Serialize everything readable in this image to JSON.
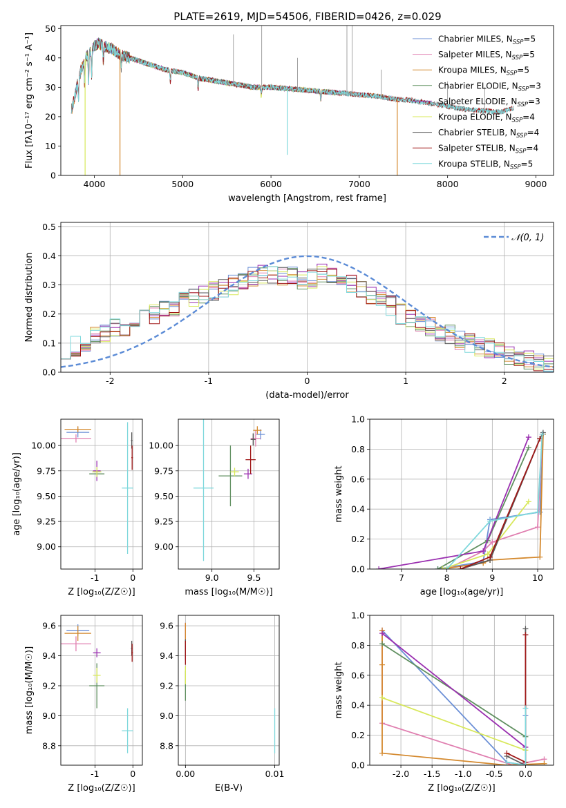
{
  "figure_title": "PLATE=2619, MJD=54506, FIBERID=0426, z=0.029",
  "palette": {
    "Chabrier MILES": "#6b8fd6",
    "Salpeter MILES": "#e07fb0",
    "Kroupa MILES": "#d4892e",
    "Chabrier ELODIE": "#5f8f5f",
    "Salpeter ELODIE": "#9a2fb0",
    "Kroupa ELODIE": "#d8e85a",
    "Chabrier STELIB": "#5a5a5a",
    "Salpeter STELIB": "#a01818",
    "Kroupa STELIB": "#7fd8dc"
  },
  "chart_data": [
    {
      "id": "spectrum",
      "type": "line",
      "xlabel": "wavelength [Angstrom, rest frame]",
      "ylabel": "Flux [fλ10⁻¹⁷ erg cm⁻² s⁻¹ A⁻¹]",
      "xlim": [
        3620,
        9200
      ],
      "ylim": [
        0,
        51
      ],
      "xticks": [
        4000,
        5000,
        6000,
        7000,
        8000,
        9000
      ],
      "yticks": [
        0,
        10,
        20,
        30,
        40,
        50
      ],
      "grid": false,
      "legend_position": "top-right",
      "legend": [
        {
          "label": "Chabrier MILES",
          "nssp": "5"
        },
        {
          "label": "Salpeter MILES",
          "nssp": "5"
        },
        {
          "label": "Kroupa MILES",
          "nssp": "5"
        },
        {
          "label": "Chabrier ELODIE",
          "nssp": "3"
        },
        {
          "label": "Salpeter ELODIE",
          "nssp": "3"
        },
        {
          "label": "Kroupa ELODIE",
          "nssp": "4"
        },
        {
          "label": "Chabrier STELIB",
          "nssp": "4"
        },
        {
          "label": "Salpeter STELIB",
          "nssp": "4"
        },
        {
          "label": "Kroupa STELIB",
          "nssp": "5"
        }
      ],
      "continuum": {
        "x": [
          3750,
          3800,
          3850,
          3900,
          3950,
          4000,
          4050,
          4100,
          4200,
          4300,
          4400,
          4600,
          4800,
          5000,
          5200,
          5400,
          5600,
          5800,
          6000,
          6200,
          6400,
          6600,
          6800,
          7000,
          7200,
          7400,
          7600,
          7800,
          8000,
          8200,
          8400,
          8600,
          8800
        ],
        "y": [
          23,
          30,
          36,
          40,
          42,
          44,
          45,
          44,
          43,
          41,
          40,
          38,
          36,
          35,
          33,
          32,
          31,
          30,
          30,
          29.5,
          29,
          28.5,
          28,
          27.5,
          27,
          26,
          25.5,
          24.5,
          23.5,
          22.5,
          22,
          21.5,
          23.5
        ]
      },
      "ranges": {
        "Chabrier MILES": [
          3740,
          7400
        ],
        "Salpeter MILES": [
          3740,
          7400
        ],
        "Kroupa MILES": [
          3740,
          7430
        ],
        "Chabrier ELODIE": [
          3900,
          6800
        ],
        "Salpeter ELODIE": [
          3900,
          6800
        ],
        "Kroupa ELODIE": [
          3900,
          6800
        ],
        "Chabrier STELIB": [
          3740,
          8750
        ],
        "Salpeter STELIB": [
          3740,
          8750
        ],
        "Kroupa STELIB": [
          3740,
          8750
        ]
      },
      "dips": [
        {
          "series": "Kroupa MILES",
          "x": 4290,
          "y": 0
        },
        {
          "series": "Kroupa MILES",
          "x": 7430,
          "y": 0
        },
        {
          "series": "Kroupa ELODIE",
          "x": 3895,
          "y": 0
        },
        {
          "series": "Kroupa STELIB",
          "x": 6185,
          "y": 7
        }
      ]
    },
    {
      "id": "residuals",
      "type": "line",
      "xlabel": "(data-model)/error",
      "ylabel": "Normed distribution",
      "xlim": [
        -2.5,
        2.5
      ],
      "ylim": [
        0,
        0.515
      ],
      "xticks": [
        -2,
        -1,
        0,
        1,
        2
      ],
      "yticks": [
        0.0,
        0.1,
        0.2,
        0.3,
        0.4,
        0.5
      ],
      "grid": true,
      "legend_position": "top-right",
      "legend": [
        {
          "label": "𝒩(0, 1)",
          "style": "dashed"
        }
      ],
      "bin_width": 0.1,
      "bins_start": -2.5,
      "base_profile": [
        0.08,
        0.09,
        0.1,
        0.12,
        0.13,
        0.15,
        0.16,
        0.17,
        0.19,
        0.2,
        0.21,
        0.22,
        0.24,
        0.26,
        0.27,
        0.28,
        0.29,
        0.3,
        0.31,
        0.33,
        0.34,
        0.34,
        0.33,
        0.33,
        0.32,
        0.32,
        0.34,
        0.34,
        0.32,
        0.3,
        0.29,
        0.27,
        0.25,
        0.23,
        0.2,
        0.19,
        0.17,
        0.16,
        0.14,
        0.13,
        0.11,
        0.1,
        0.09,
        0.08,
        0.07,
        0.06,
        0.05,
        0.04,
        0.035,
        0.03
      ]
    },
    {
      "id": "age-vs-Z",
      "type": "scatter",
      "xlabel": "Z [log₁₀(Z/Z☉)]",
      "ylabel": "age  [log₁₀(age/yr)]",
      "xlim": [
        -1.9,
        0.25
      ],
      "ylim": [
        8.78,
        10.26
      ],
      "xticks": [
        -1,
        0
      ],
      "yticks": [
        9.0,
        9.25,
        9.5,
        9.75,
        10.0
      ],
      "grid": true,
      "points": [
        {
          "series": "Chabrier MILES",
          "x": -1.45,
          "y": 10.13,
          "xerr": 0.3,
          "yerr": 0.05
        },
        {
          "series": "Salpeter MILES",
          "x": -1.5,
          "y": 10.07,
          "xerr": 0.4,
          "yerr": 0.04
        },
        {
          "series": "Kroupa MILES",
          "x": -1.45,
          "y": 10.16,
          "xerr": 0.35,
          "yerr": 0.03
        },
        {
          "series": "Chabrier ELODIE",
          "x": -0.95,
          "y": 9.72,
          "xerr": 0.2,
          "yerr": 0.03
        },
        {
          "series": "Salpeter ELODIE",
          "x": -0.95,
          "y": 9.75,
          "xerr": 0.1,
          "yerr": 0.1
        },
        {
          "series": "Kroupa ELODIE",
          "x": -0.95,
          "y": 9.74,
          "xerr": 0.12,
          "yerr": 0.05
        },
        {
          "series": "Chabrier STELIB",
          "x": -0.03,
          "y": 10.05,
          "xerr": 0.02,
          "yerr": 0.08
        },
        {
          "series": "Salpeter STELIB",
          "x": -0.02,
          "y": 9.88,
          "xerr": 0.02,
          "yerr": 0.12
        },
        {
          "series": "Kroupa STELIB",
          "x": -0.14,
          "y": 9.58,
          "xerr": 0.15,
          "yerr": 0.65
        }
      ]
    },
    {
      "id": "age-vs-mass",
      "type": "scatter",
      "xlabel": "mass [log₁₀(M/M☉)]",
      "ylabel": "",
      "xlim": [
        8.6,
        9.8
      ],
      "ylim": [
        8.78,
        10.26
      ],
      "xticks": [
        9.0,
        9.5
      ],
      "yticks": [
        9.0,
        9.25,
        9.5,
        9.75,
        10.0
      ],
      "grid": true,
      "points": [
        {
          "series": "Chabrier MILES",
          "x": 9.58,
          "y": 10.11,
          "xerr": 0.05,
          "yerr": 0.05
        },
        {
          "series": "Salpeter MILES",
          "x": 9.52,
          "y": 10.07,
          "xerr": 0.06,
          "yerr": 0.08
        },
        {
          "series": "Kroupa MILES",
          "x": 9.54,
          "y": 10.15,
          "xerr": 0.05,
          "yerr": 0.04
        },
        {
          "series": "Chabrier ELODIE",
          "x": 9.22,
          "y": 9.7,
          "xerr": 0.14,
          "yerr": 0.3
        },
        {
          "series": "Salpeter ELODIE",
          "x": 9.43,
          "y": 9.72,
          "xerr": 0.05,
          "yerr": 0.05
        },
        {
          "series": "Kroupa ELODIE",
          "x": 9.27,
          "y": 9.74,
          "xerr": 0.05,
          "yerr": 0.04
        },
        {
          "series": "Chabrier STELIB",
          "x": 9.49,
          "y": 10.06,
          "xerr": 0.03,
          "yerr": 0.06
        },
        {
          "series": "Salpeter STELIB",
          "x": 9.46,
          "y": 9.86,
          "xerr": 0.06,
          "yerr": 0.14
        },
        {
          "series": "Kroupa STELIB",
          "x": 8.9,
          "y": 9.58,
          "xerr": 0.12,
          "yerr": 0.72
        }
      ]
    },
    {
      "id": "weight-vs-age",
      "type": "line",
      "xlabel": "age  [log₁₀(age/yr)]",
      "ylabel": "mass weight",
      "xlim": [
        6.3,
        10.35
      ],
      "ylim": [
        0,
        1.0
      ],
      "xticks": [
        7,
        8,
        9,
        10
      ],
      "yticks": [
        0.0,
        0.2,
        0.4,
        0.6,
        0.8,
        1.0
      ],
      "grid": true,
      "series": [
        {
          "name": "Chabrier MILES",
          "x": [
            7.8,
            8.8,
            8.95,
            10.05,
            10.12
          ],
          "y": [
            0.0,
            0.05,
            0.33,
            0.38,
            0.9
          ]
        },
        {
          "name": "Salpeter MILES",
          "x": [
            8.0,
            8.8,
            9.0,
            10.0,
            10.1
          ],
          "y": [
            0.0,
            0.12,
            0.18,
            0.28,
            0.9
          ]
        },
        {
          "name": "Kroupa MILES",
          "x": [
            7.9,
            8.8,
            8.95,
            10.05,
            10.12
          ],
          "y": [
            0.0,
            0.04,
            0.06,
            0.08,
            0.9
          ]
        },
        {
          "name": "Chabrier ELODIE",
          "x": [
            7.8,
            8.9,
            9.8
          ],
          "y": [
            0.0,
            0.19,
            0.81
          ]
        },
        {
          "name": "Salpeter ELODIE",
          "x": [
            6.5,
            8.8,
            9.8
          ],
          "y": [
            0.0,
            0.12,
            0.88
          ]
        },
        {
          "name": "Kroupa ELODIE",
          "x": [
            7.9,
            8.9,
            9.8
          ],
          "y": [
            0.0,
            0.1,
            0.45
          ]
        },
        {
          "name": "Chabrier STELIB",
          "x": [
            8.3,
            8.95,
            10.05,
            10.12
          ],
          "y": [
            0.0,
            0.06,
            0.87,
            0.91
          ]
        },
        {
          "name": "Salpeter STELIB",
          "x": [
            8.3,
            8.95,
            10.05
          ],
          "y": [
            0.0,
            0.08,
            0.87
          ]
        },
        {
          "name": "Kroupa STELIB",
          "x": [
            8.0,
            8.95,
            10.0,
            10.1
          ],
          "y": [
            0.0,
            0.32,
            0.38,
            0.9
          ]
        }
      ]
    },
    {
      "id": "mass-vs-Z",
      "type": "scatter",
      "xlabel": "Z [log₁₀(Z/Z☉)]",
      "ylabel": "mass [log₁₀(M/M☉)]",
      "xlim": [
        -1.9,
        0.25
      ],
      "ylim": [
        8.67,
        9.67
      ],
      "xticks": [
        -1,
        0
      ],
      "yticks": [
        8.8,
        9.0,
        9.2,
        9.4,
        9.6
      ],
      "grid": true,
      "points": [
        {
          "series": "Chabrier MILES",
          "x": -1.45,
          "y": 9.57,
          "xerr": 0.3,
          "yerr": 0.04
        },
        {
          "series": "Salpeter MILES",
          "x": -1.5,
          "y": 9.48,
          "xerr": 0.4,
          "yerr": 0.05
        },
        {
          "series": "Kroupa MILES",
          "x": -1.45,
          "y": 9.55,
          "xerr": 0.35,
          "yerr": 0.05
        },
        {
          "series": "Chabrier ELODIE",
          "x": -0.95,
          "y": 9.2,
          "xerr": 0.2,
          "yerr": 0.15
        },
        {
          "series": "Salpeter ELODIE",
          "x": -0.95,
          "y": 9.42,
          "xerr": 0.1,
          "yerr": 0.03
        },
        {
          "series": "Kroupa ELODIE",
          "x": -0.95,
          "y": 9.27,
          "xerr": 0.1,
          "yerr": 0.05
        },
        {
          "series": "Chabrier STELIB",
          "x": -0.03,
          "y": 9.45,
          "xerr": 0.02,
          "yerr": 0.05
        },
        {
          "series": "Salpeter STELIB",
          "x": -0.02,
          "y": 9.42,
          "xerr": 0.02,
          "yerr": 0.06
        },
        {
          "series": "Kroupa STELIB",
          "x": -0.14,
          "y": 8.9,
          "xerr": 0.15,
          "yerr": 0.15
        }
      ]
    },
    {
      "id": "mass-vs-ebv",
      "type": "scatter",
      "xlabel": "E(B-V)",
      "ylabel": "",
      "xlim": [
        -0.0008,
        0.0105
      ],
      "ylim": [
        8.67,
        9.67
      ],
      "xticks": [
        0.0,
        0.01
      ],
      "xtick_labels": [
        "0.00",
        "0.01"
      ],
      "yticks": [
        8.8,
        9.0,
        9.2,
        9.4,
        9.6
      ],
      "grid": true,
      "points": [
        {
          "series": "Chabrier MILES",
          "x": 0.0,
          "y": 9.57,
          "xerr": 0.0,
          "yerr": 0.05
        },
        {
          "series": "Salpeter MILES",
          "x": 0.0,
          "y": 9.5,
          "xerr": 0.0,
          "yerr": 0.12
        },
        {
          "series": "Kroupa MILES",
          "x": 0.0,
          "y": 9.55,
          "xerr": 0.0,
          "yerr": 0.07
        },
        {
          "series": "Chabrier ELODIE",
          "x": 0.0,
          "y": 9.2,
          "xerr": 0.0,
          "yerr": 0.1
        },
        {
          "series": "Salpeter ELODIE",
          "x": 0.0,
          "y": 9.42,
          "xerr": 0.0,
          "yerr": 0.05
        },
        {
          "series": "Kroupa ELODIE",
          "x": 0.0,
          "y": 9.27,
          "xerr": 0.0,
          "yerr": 0.06
        },
        {
          "series": "Chabrier STELIB",
          "x": 0.0,
          "y": 9.45,
          "xerr": 0.0,
          "yerr": 0.06
        },
        {
          "series": "Salpeter STELIB",
          "x": 0.0,
          "y": 9.42,
          "xerr": 0.0,
          "yerr": 0.08
        },
        {
          "series": "Kroupa STELIB",
          "x": 0.01,
          "y": 8.9,
          "xerr": 0.0,
          "yerr": 0.15
        }
      ]
    },
    {
      "id": "weight-vs-Z",
      "type": "line",
      "xlabel": "Z [log₁₀(Z/Z☉)]",
      "ylabel": "mass weight",
      "xlim": [
        -2.5,
        0.45
      ],
      "ylim": [
        0,
        1.0
      ],
      "xticks": [
        -2.0,
        -1.5,
        -1.0,
        -0.5,
        0.0
      ],
      "yticks": [
        0.0,
        0.2,
        0.4,
        0.6,
        0.8,
        1.0
      ],
      "grid": true,
      "series": [
        {
          "name": "Chabrier MILES",
          "x": [
            -2.3,
            -0.3,
            0.0,
            0.0
          ],
          "y": [
            0.9,
            0.02,
            0.0,
            0.33
          ]
        },
        {
          "name": "Salpeter MILES",
          "x": [
            -2.3,
            -2.3,
            -0.2,
            0.3
          ],
          "y": [
            0.9,
            0.28,
            0.0,
            0.04
          ]
        },
        {
          "name": "Kroupa MILES",
          "x": [
            -2.3,
            -2.3,
            -2.3,
            -0.3,
            0.3
          ],
          "y": [
            0.9,
            0.67,
            0.08,
            0.0,
            0.01
          ]
        },
        {
          "name": "Chabrier ELODIE",
          "x": [
            -2.3,
            0.0
          ],
          "y": [
            0.81,
            0.19
          ]
        },
        {
          "name": "Salpeter ELODIE",
          "x": [
            -2.3,
            0.0
          ],
          "y": [
            0.88,
            0.12
          ]
        },
        {
          "name": "Kroupa ELODIE",
          "x": [
            -2.3,
            0.0
          ],
          "y": [
            0.45,
            0.1
          ]
        },
        {
          "name": "Chabrier STELIB",
          "x": [
            -0.3,
            0.0,
            0.0
          ],
          "y": [
            0.06,
            0.0,
            0.91
          ]
        },
        {
          "name": "Salpeter STELIB",
          "x": [
            -0.3,
            0.0,
            0.0
          ],
          "y": [
            0.08,
            0.02,
            0.87
          ]
        },
        {
          "name": "Kroupa STELIB",
          "x": [
            -0.3,
            0.0,
            0.0
          ],
          "y": [
            0.02,
            0.0,
            0.38
          ]
        }
      ]
    }
  ]
}
